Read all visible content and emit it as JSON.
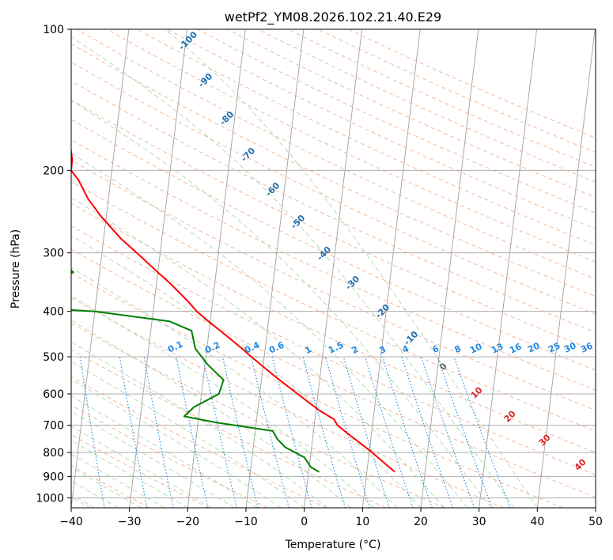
{
  "chart_data": {
    "type": "line",
    "subtype": "skew-t log-p diagram",
    "title": "wetPf2_YM08.2026.102.21.40.E29",
    "xlabel": "Temperature (°C)",
    "ylabel": "Pressure (hPa)",
    "xlim": [
      -40,
      50
    ],
    "ylim": [
      1050,
      100
    ],
    "x_ticks": [
      -40,
      -30,
      -20,
      -10,
      0,
      10,
      20,
      30,
      40,
      50
    ],
    "x_tick_labels": [
      "−40",
      "−30",
      "−20",
      "−10",
      "0",
      "10",
      "20",
      "30",
      "40",
      "50"
    ],
    "y_ticks": [
      100,
      200,
      300,
      400,
      500,
      600,
      700,
      800,
      900,
      1000
    ],
    "y_tick_labels": [
      "100",
      "200",
      "300",
      "400",
      "500",
      "600",
      "700",
      "800",
      "900",
      "1000"
    ],
    "colors": {
      "temperature": "#ff0000",
      "dewpoint": "#008000",
      "isotherm": "#a0a0a0",
      "isobar": "#a0a0a0",
      "dry_adiabat": "#f5a582",
      "moist_adiabat": "#9fcf9f",
      "mixing_ratio": "#1e88e5",
      "isotherm_label": "#1f6fb0",
      "dry_label": "#d62728",
      "mixing_label": "#1e88e5",
      "special_isotherm": "#d6c2a8"
    },
    "series": [
      {
        "name": "Temperature",
        "color": "#ff0000",
        "points": [
          {
            "p": 100,
            "t": -76.2
          },
          {
            "p": 110,
            "t": -71.5
          },
          {
            "p": 120,
            "t": -67.0
          },
          {
            "p": 135,
            "t": -61.0
          },
          {
            "p": 150,
            "t": -55.0
          },
          {
            "p": 165,
            "t": -50.5
          },
          {
            "p": 180,
            "t": -47.5
          },
          {
            "p": 190,
            "t": -47.0
          },
          {
            "p": 200,
            "t": -47.0
          },
          {
            "p": 210,
            "t": -45.5
          },
          {
            "p": 230,
            "t": -43.5
          },
          {
            "p": 250,
            "t": -41.0
          },
          {
            "p": 280,
            "t": -37.0
          },
          {
            "p": 300,
            "t": -34.0
          },
          {
            "p": 330,
            "t": -30.0
          },
          {
            "p": 350,
            "t": -27.5
          },
          {
            "p": 380,
            "t": -24.3
          },
          {
            "p": 400,
            "t": -22.5
          },
          {
            "p": 420,
            "t": -20.3
          },
          {
            "p": 450,
            "t": -17.0
          },
          {
            "p": 480,
            "t": -14.0
          },
          {
            "p": 500,
            "t": -12.2
          },
          {
            "p": 550,
            "t": -7.8
          },
          {
            "p": 600,
            "t": -3.5
          },
          {
            "p": 650,
            "t": 0.5
          },
          {
            "p": 680,
            "t": 3.3
          },
          {
            "p": 700,
            "t": 4.0
          },
          {
            "p": 730,
            "t": 6.0
          },
          {
            "p": 760,
            "t": 8.0
          },
          {
            "p": 800,
            "t": 10.5
          },
          {
            "p": 850,
            "t": 13.2
          },
          {
            "p": 880,
            "t": 14.8
          }
        ]
      },
      {
        "name": "Dewpoint",
        "color": "#008000",
        "points": [
          {
            "p": 100,
            "t": -81.0
          },
          {
            "p": 110,
            "t": -81.6
          },
          {
            "p": 120,
            "t": -82.8
          },
          {
            "p": 130,
            "t": -86.0
          },
          {
            "p": 135,
            "t": -94.0
          },
          {
            "p": 140,
            "t": -93.0
          },
          {
            "p": 150,
            "t": -79.5
          },
          {
            "p": 165,
            "t": -71.0
          },
          {
            "p": 180,
            "t": -67.0
          },
          {
            "p": 200,
            "t": -62.0
          },
          {
            "p": 220,
            "t": -59.0
          },
          {
            "p": 250,
            "t": -54.5
          },
          {
            "p": 280,
            "t": -49.5
          },
          {
            "p": 300,
            "t": -48.5
          },
          {
            "p": 330,
            "t": -44.5
          },
          {
            "p": 350,
            "t": -50.0
          },
          {
            "p": 375,
            "t": -65.0
          },
          {
            "p": 390,
            "t": -55.0
          },
          {
            "p": 400,
            "t": -40.0
          },
          {
            "p": 420,
            "t": -27.0
          },
          {
            "p": 440,
            "t": -23.0
          },
          {
            "p": 480,
            "t": -22.0
          },
          {
            "p": 520,
            "t": -19.5
          },
          {
            "p": 560,
            "t": -16.5
          },
          {
            "p": 600,
            "t": -17.0
          },
          {
            "p": 640,
            "t": -21.0
          },
          {
            "p": 670,
            "t": -22.5
          },
          {
            "p": 690,
            "t": -17.0
          },
          {
            "p": 720,
            "t": -7.0
          },
          {
            "p": 750,
            "t": -6.0
          },
          {
            "p": 780,
            "t": -4.5
          },
          {
            "p": 820,
            "t": -1.0
          },
          {
            "p": 860,
            "t": 0.3
          },
          {
            "p": 880,
            "t": 1.8
          }
        ]
      }
    ],
    "background": {
      "isotherm_labels": [
        "-100",
        "-90",
        "-80",
        "-70",
        "-60",
        "-50",
        "-40",
        "-30",
        "-20",
        "-10",
        "0"
      ],
      "dry_adiabat_labels": [
        "10",
        "20",
        "30",
        "40"
      ],
      "mixing_ratio_labels": [
        "0.1",
        "0.2",
        "0.4",
        "0.6",
        "1",
        "1.5",
        "2",
        "3",
        "4",
        "6",
        "8",
        "10",
        "13",
        "16",
        "20",
        "25",
        "30",
        "36"
      ]
    }
  }
}
